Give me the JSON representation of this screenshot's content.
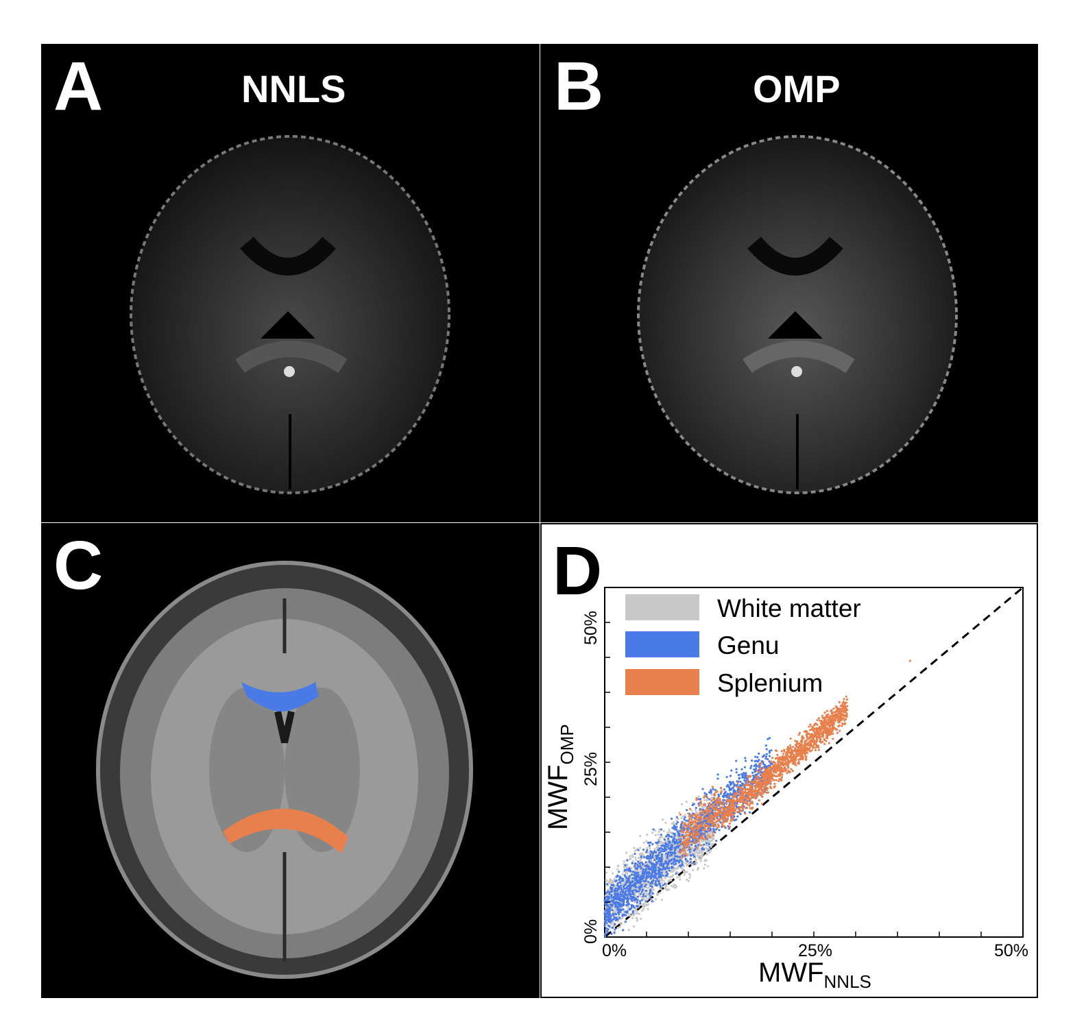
{
  "panels": {
    "a": {
      "letter": "A",
      "title": "NNLS"
    },
    "b": {
      "letter": "B",
      "title": "OMP"
    },
    "c": {
      "letter": "C",
      "regions": [
        {
          "name": "Genu",
          "color": "#4a7ae6"
        },
        {
          "name": "Splenium",
          "color": "#e8804d"
        }
      ]
    },
    "d": {
      "letter": "D"
    }
  },
  "chart_data": {
    "type": "scatter",
    "xlabel_main": "MWF",
    "xlabel_sub": "NNLS",
    "ylabel_main": "MWF",
    "ylabel_sub": "OMP",
    "xlim": [
      0,
      50
    ],
    "ylim": [
      0,
      50
    ],
    "x_ticks": [
      "0%",
      "25%",
      "50%"
    ],
    "y_ticks": [
      "0%",
      "25%",
      "50%"
    ],
    "legend_position": "top-left",
    "reference_line": {
      "style": "dashed",
      "from": [
        0,
        0
      ],
      "to": [
        50,
        50
      ]
    },
    "series": [
      {
        "name": "White matter",
        "color": "#c8c8c8",
        "x_range": [
          0,
          14
        ],
        "y_relation": "above identity, y ≈ x + 2 to 8"
      },
      {
        "name": "Genu",
        "color": "#4a7ae6",
        "x_range": [
          0,
          22
        ],
        "y_relation": "above identity, y ≈ x + 1 to 8"
      },
      {
        "name": "Splenium",
        "color": "#e8804d",
        "x_range": [
          9,
          37
        ],
        "y_relation": "above identity, y ≈ x + 1 to 5"
      }
    ]
  }
}
